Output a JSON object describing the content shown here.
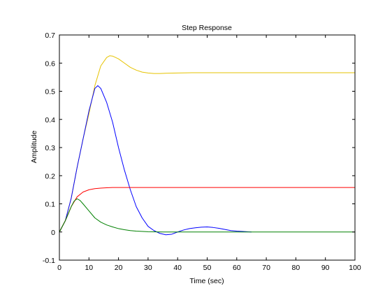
{
  "chart_data": {
    "type": "line",
    "title": "Step Response",
    "xlabel": "Time (sec)",
    "ylabel": "Amplitude",
    "xlim": [
      0,
      100
    ],
    "ylim": [
      -0.1,
      0.7
    ],
    "xticks": [
      0,
      10,
      20,
      30,
      40,
      50,
      60,
      70,
      80,
      90,
      100
    ],
    "yticks": [
      -0.1,
      0,
      0.1,
      0.2,
      0.3,
      0.4,
      0.5,
      0.6,
      0.7
    ],
    "grid": false,
    "legend": "none",
    "series": [
      {
        "color": "#e6c300",
        "x": [
          0,
          2,
          4,
          6,
          8,
          10,
          12,
          14,
          16,
          17,
          18,
          20,
          22,
          24,
          26,
          28,
          30,
          32,
          34,
          36,
          40,
          45,
          50,
          60,
          70,
          80,
          90,
          100
        ],
        "y": [
          0,
          0.04,
          0.12,
          0.23,
          0.33,
          0.42,
          0.52,
          0.59,
          0.62,
          0.626,
          0.625,
          0.615,
          0.6,
          0.585,
          0.575,
          0.568,
          0.565,
          0.563,
          0.563,
          0.564,
          0.565,
          0.566,
          0.566,
          0.566,
          0.566,
          0.566,
          0.566,
          0.566
        ]
      },
      {
        "color": "#0000ff",
        "x": [
          0,
          2,
          4,
          6,
          8,
          10,
          12,
          13,
          14,
          16,
          18,
          20,
          22,
          24,
          26,
          28,
          30,
          32,
          34,
          36,
          38,
          40,
          42,
          44,
          46,
          48,
          50,
          52,
          54,
          56,
          58,
          60,
          62,
          65
        ],
        "y": [
          0,
          0.04,
          0.12,
          0.23,
          0.33,
          0.43,
          0.51,
          0.52,
          0.51,
          0.46,
          0.39,
          0.3,
          0.22,
          0.15,
          0.09,
          0.05,
          0.02,
          0.005,
          -0.005,
          -0.01,
          -0.008,
          0.0,
          0.007,
          0.012,
          0.015,
          0.017,
          0.018,
          0.016,
          0.013,
          0.009,
          0.005,
          0.003,
          0.002,
          0.0
        ]
      },
      {
        "color": "#ff0000",
        "x": [
          0,
          2,
          4,
          6,
          8,
          10,
          12,
          14,
          16,
          18,
          20,
          25,
          30,
          40,
          50,
          60,
          70,
          80,
          90,
          100
        ],
        "y": [
          0,
          0.04,
          0.09,
          0.125,
          0.142,
          0.15,
          0.154,
          0.156,
          0.157,
          0.158,
          0.158,
          0.158,
          0.158,
          0.158,
          0.158,
          0.158,
          0.158,
          0.158,
          0.158,
          0.158
        ]
      },
      {
        "color": "#008000",
        "x": [
          0,
          2,
          4,
          5,
          6,
          7,
          8,
          10,
          12,
          14,
          16,
          18,
          20,
          22,
          24,
          26,
          30,
          35,
          40,
          50,
          60,
          70,
          80,
          90,
          100
        ],
        "y": [
          0,
          0.04,
          0.09,
          0.11,
          0.118,
          0.112,
          0.1,
          0.075,
          0.05,
          0.035,
          0.025,
          0.018,
          0.012,
          0.008,
          0.005,
          0.003,
          0.001,
          0.0,
          0.0,
          0.0,
          0.0,
          0.0,
          0.0,
          0.0,
          0.0
        ]
      }
    ]
  }
}
